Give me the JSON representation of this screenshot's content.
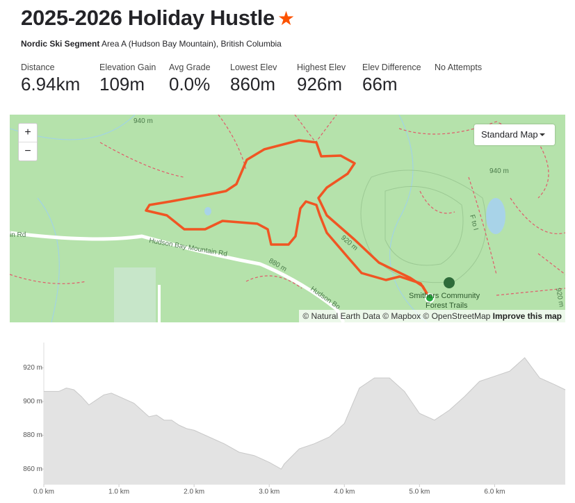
{
  "header": {
    "title": "2025-2026 Holiday Hustle",
    "segment_type": "Nordic Ski Segment",
    "location": "Area A (Hudson Bay Mountain), British Columbia"
  },
  "stats": [
    {
      "label": "Distance",
      "value": "6.94km"
    },
    {
      "label": "Elevation Gain",
      "value": "109m"
    },
    {
      "label": "Avg Grade",
      "value": "0.0%"
    },
    {
      "label": "Lowest Elev",
      "value": "860m"
    },
    {
      "label": "Highest Elev",
      "value": "926m"
    },
    {
      "label": "Elev Difference",
      "value": "66m"
    }
  ],
  "attempts": "No Attempts",
  "map": {
    "zoom_in": "+",
    "zoom_out": "−",
    "style_button": "Standard Map",
    "attribution": "© Natural Earth Data © Mapbox © OpenStreetMap",
    "improve_link": "Improve this map",
    "labels": [
      "940 m",
      "in Rd",
      "Hudson Bay Mountain Rd",
      "880 m",
      "Hudson Bo",
      "940 m",
      "920 m",
      "Smithers Community",
      "Forest Trails",
      "F to I",
      "920 m"
    ]
  },
  "chart_data": {
    "type": "area",
    "color": "#e3e3e3",
    "line_color": "#c8c8c8",
    "x": [
      0,
      0.2,
      0.3,
      0.4,
      0.5,
      0.6,
      0.7,
      0.8,
      0.9,
      1.0,
      1.1,
      1.2,
      1.3,
      1.4,
      1.5,
      1.6,
      1.7,
      1.8,
      1.9,
      2.0,
      2.2,
      2.4,
      2.6,
      2.8,
      3.0,
      3.16,
      3.2,
      3.4,
      3.6,
      3.8,
      4.0,
      4.2,
      4.4,
      4.6,
      4.8,
      5.0,
      5.2,
      5.4,
      5.6,
      5.8,
      6.0,
      6.2,
      6.4,
      6.6,
      6.8,
      6.94
    ],
    "values": [
      906,
      906,
      908,
      907,
      903,
      898,
      901,
      904,
      905,
      903,
      901,
      899,
      895,
      891,
      892,
      889,
      889,
      886,
      884,
      883,
      879,
      875,
      870,
      868,
      864,
      860,
      863,
      872,
      875,
      879,
      887,
      908,
      914,
      914,
      906,
      893,
      889,
      895,
      903,
      912,
      915,
      918,
      926,
      914,
      910,
      907
    ],
    "xlim": [
      0,
      6.94
    ],
    "ylim": [
      851,
      935
    ],
    "xticks": [
      {
        "value": 0,
        "label": "0.0 km"
      },
      {
        "value": 1,
        "label": "1.0 km"
      },
      {
        "value": 2,
        "label": "2.0 km"
      },
      {
        "value": 3,
        "label": "3.0 km"
      },
      {
        "value": 4,
        "label": "4.0 km"
      },
      {
        "value": 5,
        "label": "5.0 km"
      },
      {
        "value": 6,
        "label": "6.0 km"
      }
    ],
    "yticks": [
      {
        "value": 860,
        "label": "860 m"
      },
      {
        "value": 880,
        "label": "880 m"
      },
      {
        "value": 900,
        "label": "900 m"
      },
      {
        "value": 920,
        "label": "920 m"
      }
    ]
  }
}
